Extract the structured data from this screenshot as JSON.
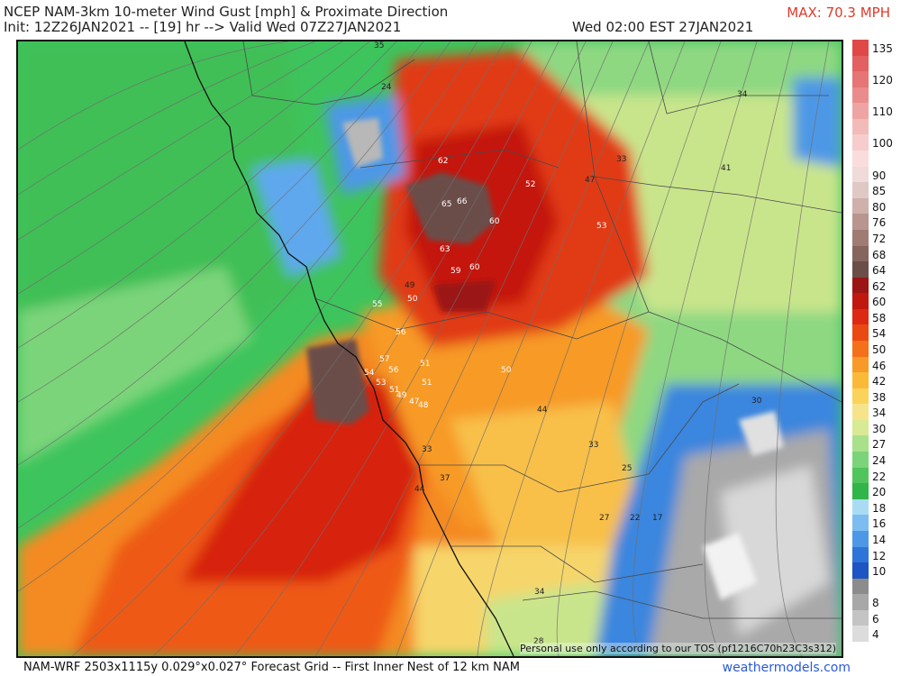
{
  "header": {
    "title": "NCEP NAM-3km 10-meter Wind Gust [mph] & Proximate Direction",
    "init": "Init: 12Z26JAN2021 -- [19] hr --> Valid Wed 07Z27JAN2021",
    "valid_local": "Wed 02:00 EST 27JAN2021",
    "max": "MAX: 70.3 MPH"
  },
  "map": {
    "tos_note": "Personal use only according to our TOS (pf1216C70h23C3s312)",
    "value_labels": [
      {
        "text": "35",
        "color": "#222222"
      },
      {
        "text": "24",
        "color": "#222222"
      },
      {
        "text": "34",
        "color": "#222222"
      },
      {
        "text": "33",
        "color": "#222222"
      },
      {
        "text": "47",
        "color": "#222222"
      },
      {
        "text": "41",
        "color": "#222222"
      },
      {
        "text": "62",
        "color": "#ffffff"
      },
      {
        "text": "65",
        "color": "#ffffff"
      },
      {
        "text": "66",
        "color": "#ffffff"
      },
      {
        "text": "52",
        "color": "#ffffff"
      },
      {
        "text": "60",
        "color": "#ffffff"
      },
      {
        "text": "53",
        "color": "#ffffff"
      },
      {
        "text": "63",
        "color": "#ffffff"
      },
      {
        "text": "59",
        "color": "#ffffff"
      },
      {
        "text": "60",
        "color": "#ffffff"
      },
      {
        "text": "49",
        "color": "#222222"
      },
      {
        "text": "55",
        "color": "#ffffff"
      },
      {
        "text": "50",
        "color": "#ffffff"
      },
      {
        "text": "56",
        "color": "#ffffff"
      },
      {
        "text": "51",
        "color": "#ffffff"
      },
      {
        "text": "57",
        "color": "#ffffff"
      },
      {
        "text": "56",
        "color": "#ffffff"
      },
      {
        "text": "51",
        "color": "#ffffff"
      },
      {
        "text": "54",
        "color": "#ffffff"
      },
      {
        "text": "53",
        "color": "#ffffff"
      },
      {
        "text": "51",
        "color": "#ffffff"
      },
      {
        "text": "49",
        "color": "#ffffff"
      },
      {
        "text": "47",
        "color": "#ffffff"
      },
      {
        "text": "48",
        "color": "#ffffff"
      },
      {
        "text": "50",
        "color": "#ffffff"
      },
      {
        "text": "44",
        "color": "#222222"
      },
      {
        "text": "30",
        "color": "#222222"
      },
      {
        "text": "33",
        "color": "#222222"
      },
      {
        "text": "33",
        "color": "#222222"
      },
      {
        "text": "37",
        "color": "#222222"
      },
      {
        "text": "44",
        "color": "#222222"
      },
      {
        "text": "25",
        "color": "#222222"
      },
      {
        "text": "27",
        "color": "#222222"
      },
      {
        "text": "22",
        "color": "#222222"
      },
      {
        "text": "17",
        "color": "#222222"
      },
      {
        "text": "34",
        "color": "#222222"
      },
      {
        "text": "28",
        "color": "#222222"
      }
    ]
  },
  "legend": {
    "items": [
      {
        "label": "135",
        "color": "#e04848"
      },
      {
        "label": "",
        "color": "#e36060"
      },
      {
        "label": "120",
        "color": "#e67575"
      },
      {
        "label": "",
        "color": "#ea8c8c"
      },
      {
        "label": "110",
        "color": "#efa4a4"
      },
      {
        "label": "",
        "color": "#f3baba"
      },
      {
        "label": "100",
        "color": "#f7cccc"
      },
      {
        "label": "",
        "color": "#fbdcdc"
      },
      {
        "label": "90",
        "color": "#f0dada"
      },
      {
        "label": "85",
        "color": "#e0c8c4"
      },
      {
        "label": "80",
        "color": "#cfb0aa"
      },
      {
        "label": "76",
        "color": "#b8958e"
      },
      {
        "label": "72",
        "color": "#a07b73"
      },
      {
        "label": "68",
        "color": "#86655e"
      },
      {
        "label": "64",
        "color": "#6b4e48"
      },
      {
        "label": "62",
        "color": "#9b1515"
      },
      {
        "label": "60",
        "color": "#c0180f"
      },
      {
        "label": "58",
        "color": "#dc2a12"
      },
      {
        "label": "54",
        "color": "#ea4a12"
      },
      {
        "label": "50",
        "color": "#f4701a"
      },
      {
        "label": "46",
        "color": "#f89a28"
      },
      {
        "label": "42",
        "color": "#fbb938"
      },
      {
        "label": "38",
        "color": "#fbd35a"
      },
      {
        "label": "34",
        "color": "#f6e48a"
      },
      {
        "label": "30",
        "color": "#d8ea94"
      },
      {
        "label": "27",
        "color": "#a9e08a"
      },
      {
        "label": "24",
        "color": "#7bd47a"
      },
      {
        "label": "22",
        "color": "#4fc55c"
      },
      {
        "label": "20",
        "color": "#2fb548"
      },
      {
        "label": "18",
        "color": "#a9dcf4"
      },
      {
        "label": "16",
        "color": "#7bbdf0"
      },
      {
        "label": "14",
        "color": "#4d98e6"
      },
      {
        "label": "12",
        "color": "#2f74d8"
      },
      {
        "label": "10",
        "color": "#1d55c2"
      },
      {
        "label": "",
        "color": "#8c8c8c"
      },
      {
        "label": "8",
        "color": "#a8a8a8"
      },
      {
        "label": "6",
        "color": "#c4c4c4"
      },
      {
        "label": "4",
        "color": "#dcdcdc"
      }
    ]
  },
  "footer": {
    "left": "NAM-WRF 2503x1115y 0.029°x0.027° Forecast Grid -- First Inner Nest of 12 km NAM",
    "right": "weathermodels.com"
  }
}
